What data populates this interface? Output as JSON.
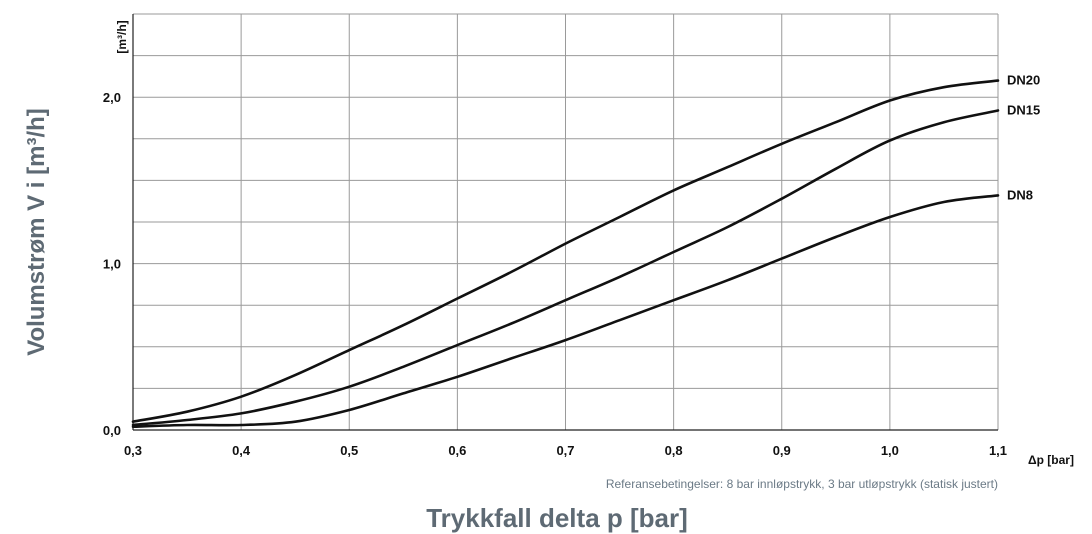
{
  "chart_data": {
    "type": "line",
    "xlabel": "Trykkfall delta p [bar]",
    "x_unit_label": "Δp [bar]",
    "ylabel": "Volumstrøm V i [m³/h]",
    "y_unit_label": "[m³/h]",
    "note": "Referansebetingelser: 8 bar innløpstrykk, 3 bar utløpstrykk (statisk justert)",
    "xlim": [
      0.3,
      1.1
    ],
    "ylim": [
      0,
      2.5
    ],
    "x_ticks": [
      0.3,
      0.4,
      0.5,
      0.6,
      0.7,
      0.8,
      0.9,
      1.0,
      1.1
    ],
    "x_tick_labels": [
      "0,3",
      "0,4",
      "0,5",
      "0,6",
      "0,7",
      "0,8",
      "0,9",
      "1,0",
      "1,1"
    ],
    "y_ticks": [
      0,
      1,
      2
    ],
    "y_tick_labels": [
      "0,0",
      "1,0",
      "2,0"
    ],
    "y_minor_step": 0.25,
    "grid": true,
    "legend": "labels at right end of each curve",
    "series": [
      {
        "name": "DN20",
        "x": [
          0.3,
          0.35,
          0.4,
          0.45,
          0.5,
          0.55,
          0.6,
          0.65,
          0.7,
          0.75,
          0.8,
          0.85,
          0.9,
          0.95,
          1.0,
          1.05,
          1.1
        ],
        "y": [
          0.05,
          0.11,
          0.2,
          0.33,
          0.48,
          0.63,
          0.79,
          0.95,
          1.12,
          1.28,
          1.44,
          1.58,
          1.72,
          1.85,
          1.98,
          2.06,
          2.1
        ]
      },
      {
        "name": "DN15",
        "x": [
          0.3,
          0.35,
          0.4,
          0.45,
          0.5,
          0.55,
          0.6,
          0.65,
          0.7,
          0.75,
          0.8,
          0.85,
          0.9,
          0.95,
          1.0,
          1.05,
          1.1
        ],
        "y": [
          0.03,
          0.06,
          0.1,
          0.17,
          0.26,
          0.38,
          0.51,
          0.64,
          0.78,
          0.92,
          1.07,
          1.22,
          1.39,
          1.57,
          1.74,
          1.85,
          1.92
        ]
      },
      {
        "name": "DN8",
        "x": [
          0.3,
          0.35,
          0.4,
          0.45,
          0.5,
          0.55,
          0.6,
          0.65,
          0.7,
          0.75,
          0.8,
          0.85,
          0.9,
          0.95,
          1.0,
          1.05,
          1.1
        ],
        "y": [
          0.02,
          0.03,
          0.03,
          0.05,
          0.12,
          0.22,
          0.32,
          0.43,
          0.54,
          0.66,
          0.78,
          0.9,
          1.03,
          1.16,
          1.28,
          1.37,
          1.41
        ]
      }
    ]
  }
}
